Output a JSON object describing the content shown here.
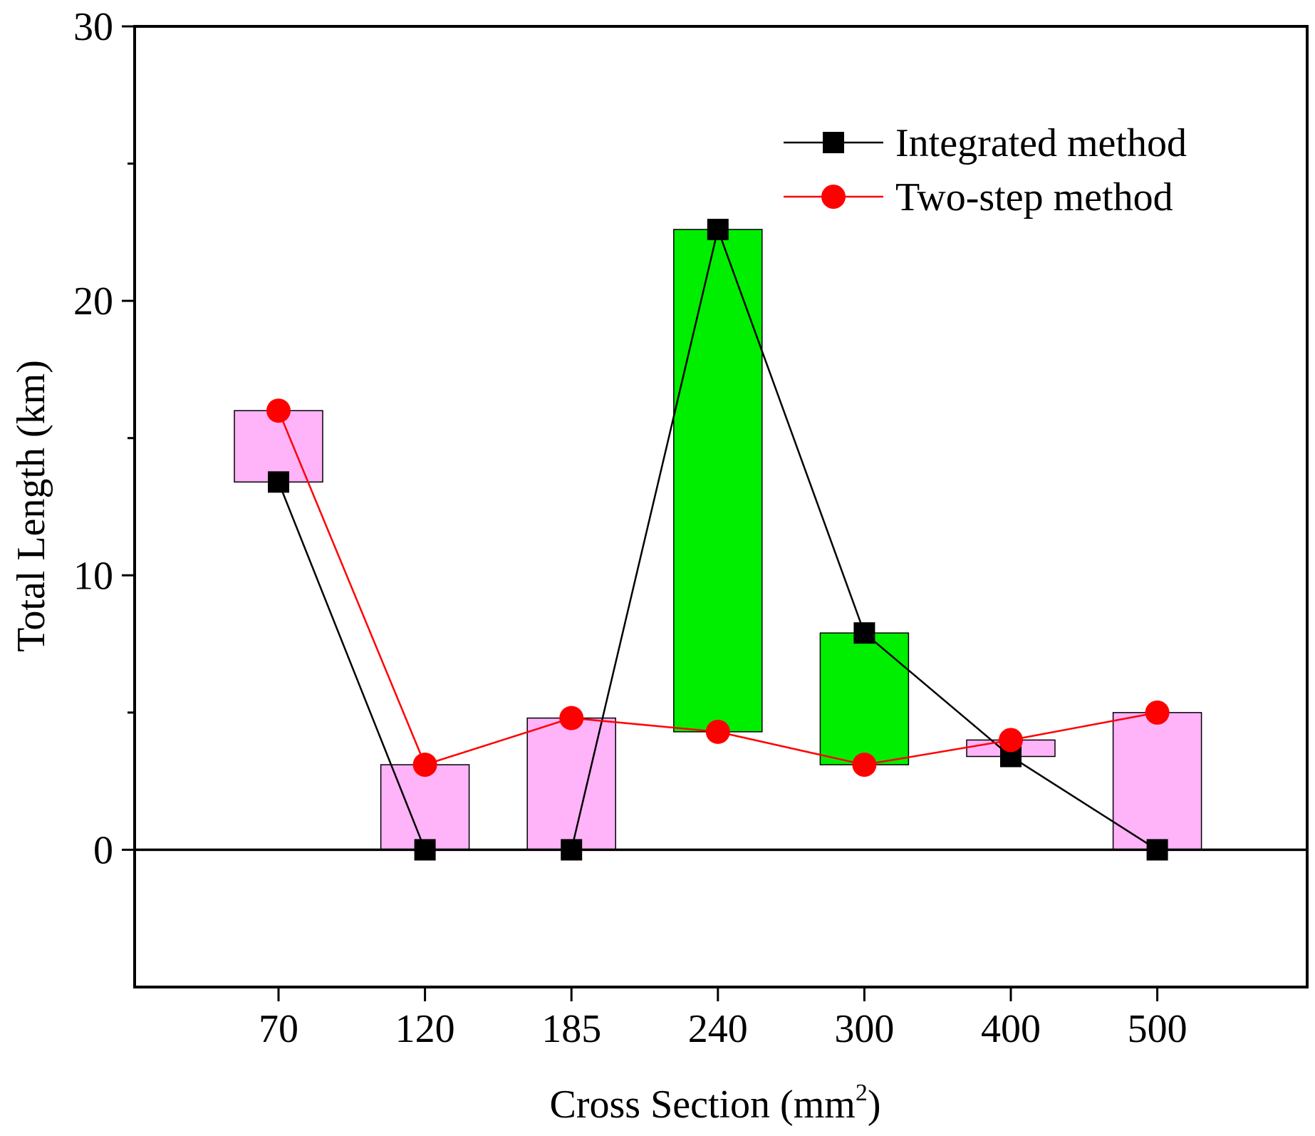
{
  "chart_data": {
    "type": "line",
    "xlabel": "Cross Section (mm",
    "xlabel_sup": "2",
    "xlabel_close": ")",
    "ylabel": "Total Length (km)",
    "categories": [
      "70",
      "120",
      "185",
      "240",
      "300",
      "400",
      "500"
    ],
    "ylim": [
      -5,
      30
    ],
    "yticks": [
      "0",
      "10",
      "20",
      "30"
    ],
    "grid": false,
    "legend_position": "top-right",
    "series": [
      {
        "name": "Integrated method",
        "marker": "square",
        "color": "#000000",
        "values": [
          13.4,
          0,
          0,
          22.6,
          7.9,
          3.4,
          0
        ]
      },
      {
        "name": "Two-step method",
        "marker": "circle",
        "color": "#ff0000",
        "values": [
          16.0,
          3.1,
          4.8,
          4.3,
          3.1,
          4.0,
          5.0
        ]
      }
    ],
    "difference_bars": {
      "description_colors": {
        "two_step_higher": "#ffb3f9",
        "integrated_higher": "#00ee00"
      }
    }
  }
}
